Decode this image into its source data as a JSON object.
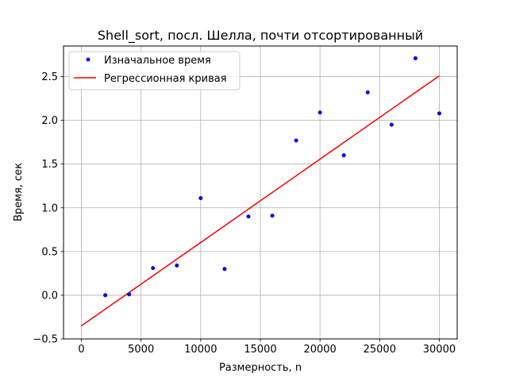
{
  "chart_data": {
    "type": "scatter",
    "title": "Shell_sort, посл. Шелла, почти отсортированный",
    "xlabel": "Размерность, n",
    "ylabel": "Время, сек",
    "xlim": [
      -1500,
      31500
    ],
    "ylim": [
      -0.5,
      2.85
    ],
    "xticks": [
      0,
      5000,
      10000,
      15000,
      20000,
      25000,
      30000
    ],
    "yticks": [
      -0.5,
      0.0,
      0.5,
      1.0,
      1.5,
      2.0,
      2.5
    ],
    "xtick_labels": [
      "0",
      "5000",
      "10000",
      "15000",
      "20000",
      "25000",
      "30000"
    ],
    "ytick_labels": [
      "−0.5",
      "0.0",
      "0.5",
      "1.0",
      "1.5",
      "2.0",
      "2.5"
    ],
    "grid": true,
    "legend_position": "top-left",
    "series": [
      {
        "name": "Изначальное время",
        "kind": "scatter",
        "color": "#0000ff",
        "x": [
          2000,
          4000,
          6000,
          8000,
          10000,
          12000,
          14000,
          16000,
          18000,
          20000,
          22000,
          24000,
          26000,
          28000,
          30000
        ],
        "y": [
          0.0,
          0.01,
          0.31,
          0.34,
          1.11,
          0.3,
          0.9,
          0.91,
          1.77,
          2.09,
          1.6,
          2.32,
          1.95,
          2.71,
          2.08
        ]
      },
      {
        "name": "Регрессионная кривая",
        "kind": "line",
        "color": "#ff0000",
        "x": [
          0,
          30000
        ],
        "y": [
          -0.35,
          2.51
        ]
      }
    ]
  }
}
